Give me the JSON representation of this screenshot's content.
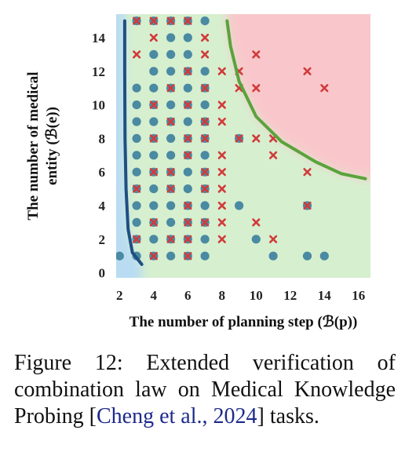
{
  "chart_data": {
    "type": "scatter",
    "xlabel": "The number of planning step (ℬ(p))",
    "ylabel_line1": "The number of medical",
    "ylabel_line2": "entity (ℬ(e))",
    "xlim": [
      1.8,
      16.7
    ],
    "ylim": [
      -0.3,
      15.4
    ],
    "x_ticks": [
      2,
      4,
      6,
      8,
      10,
      12,
      14,
      16
    ],
    "y_ticks": [
      0,
      2,
      4,
      6,
      8,
      10,
      12,
      14
    ],
    "grid": false,
    "colors": {
      "region_left": "#b9dcf2",
      "region_middle": "#d6efcf",
      "region_right": "#f9c7cb",
      "boundary_left": "#1f4f82",
      "boundary_right": "#5aa33c",
      "circle": "#4a8aa2",
      "cross": "#d13b3b"
    },
    "circles": [
      [
        2,
        1
      ],
      [
        3,
        1
      ],
      [
        4,
        1
      ],
      [
        5,
        1
      ],
      [
        6,
        1
      ],
      [
        7,
        1
      ],
      [
        11,
        1
      ],
      [
        13,
        1
      ],
      [
        14,
        1
      ],
      [
        3,
        2
      ],
      [
        4,
        2
      ],
      [
        5,
        2
      ],
      [
        6,
        2
      ],
      [
        7,
        2
      ],
      [
        10,
        2
      ],
      [
        3,
        3
      ],
      [
        4,
        3
      ],
      [
        5,
        3
      ],
      [
        6,
        3
      ],
      [
        7,
        3
      ],
      [
        3,
        4
      ],
      [
        4,
        4
      ],
      [
        5,
        4
      ],
      [
        6,
        4
      ],
      [
        7,
        4
      ],
      [
        9,
        4
      ],
      [
        13,
        4
      ],
      [
        3,
        5
      ],
      [
        4,
        5
      ],
      [
        5,
        5
      ],
      [
        6,
        5
      ],
      [
        7,
        5
      ],
      [
        3,
        6
      ],
      [
        4,
        6
      ],
      [
        5,
        6
      ],
      [
        6,
        6
      ],
      [
        7,
        6
      ],
      [
        3,
        7
      ],
      [
        4,
        7
      ],
      [
        5,
        7
      ],
      [
        6,
        7
      ],
      [
        7,
        7
      ],
      [
        3,
        8
      ],
      [
        4,
        8
      ],
      [
        5,
        8
      ],
      [
        6,
        8
      ],
      [
        7,
        8
      ],
      [
        9,
        8
      ],
      [
        3,
        9
      ],
      [
        4,
        9
      ],
      [
        5,
        9
      ],
      [
        6,
        9
      ],
      [
        7,
        9
      ],
      [
        3,
        10
      ],
      [
        4,
        10
      ],
      [
        5,
        10
      ],
      [
        6,
        10
      ],
      [
        7,
        10
      ],
      [
        3,
        11
      ],
      [
        4,
        11
      ],
      [
        5,
        11
      ],
      [
        6,
        11
      ],
      [
        7,
        11
      ],
      [
        4,
        12
      ],
      [
        5,
        12
      ],
      [
        6,
        12
      ],
      [
        7,
        12
      ],
      [
        4,
        13
      ],
      [
        5,
        13
      ],
      [
        6,
        13
      ],
      [
        5,
        14
      ],
      [
        6,
        14
      ],
      [
        3,
        15
      ],
      [
        4,
        15
      ],
      [
        5,
        15
      ],
      [
        6,
        15
      ],
      [
        7,
        15
      ]
    ],
    "crosses": [
      [
        4,
        1
      ],
      [
        6,
        1
      ],
      [
        3,
        2
      ],
      [
        5,
        2
      ],
      [
        6,
        2
      ],
      [
        8,
        2
      ],
      [
        11,
        2
      ],
      [
        4,
        3
      ],
      [
        6,
        3
      ],
      [
        7,
        3
      ],
      [
        8,
        3
      ],
      [
        10,
        3
      ],
      [
        6,
        4
      ],
      [
        8,
        4
      ],
      [
        13,
        4
      ],
      [
        3,
        5
      ],
      [
        5,
        5
      ],
      [
        7,
        5
      ],
      [
        8,
        5
      ],
      [
        4,
        6
      ],
      [
        5,
        6
      ],
      [
        7,
        6
      ],
      [
        8,
        6
      ],
      [
        13,
        6
      ],
      [
        6,
        7
      ],
      [
        8,
        7
      ],
      [
        11,
        7
      ],
      [
        4,
        8
      ],
      [
        6,
        8
      ],
      [
        7,
        8
      ],
      [
        9,
        8
      ],
      [
        10,
        8
      ],
      [
        11,
        8
      ],
      [
        5,
        9
      ],
      [
        7,
        9
      ],
      [
        8,
        9
      ],
      [
        4,
        10
      ],
      [
        6,
        10
      ],
      [
        8,
        10
      ],
      [
        5,
        11
      ],
      [
        7,
        11
      ],
      [
        9,
        11
      ],
      [
        10,
        11
      ],
      [
        14,
        11
      ],
      [
        6,
        12
      ],
      [
        8,
        12
      ],
      [
        9,
        12
      ],
      [
        13,
        12
      ],
      [
        3,
        13
      ],
      [
        7,
        13
      ],
      [
        10,
        13
      ],
      [
        4,
        14
      ],
      [
        7,
        14
      ],
      [
        3,
        15
      ],
      [
        4,
        15
      ],
      [
        5,
        15
      ],
      [
        6,
        15
      ]
    ],
    "boundary_left": [
      [
        2.3,
        15
      ],
      [
        2.3,
        12
      ],
      [
        2.32,
        8
      ],
      [
        2.38,
        5
      ],
      [
        2.5,
        2.6
      ],
      [
        2.75,
        1.2
      ],
      [
        3.3,
        0.5
      ]
    ],
    "boundary_right": [
      [
        8.3,
        15
      ],
      [
        8.5,
        13.5
      ],
      [
        9,
        11.4
      ],
      [
        10,
        9.3
      ],
      [
        11.5,
        7.8
      ],
      [
        13.5,
        6.6
      ],
      [
        15,
        5.9
      ],
      [
        16.4,
        5.6
      ]
    ]
  },
  "caption": {
    "main": "Figure 12: Extended verification of combination law on Medical Knowledge Probing [",
    "cite": "Cheng et al., 2024",
    "end": "] tasks."
  }
}
